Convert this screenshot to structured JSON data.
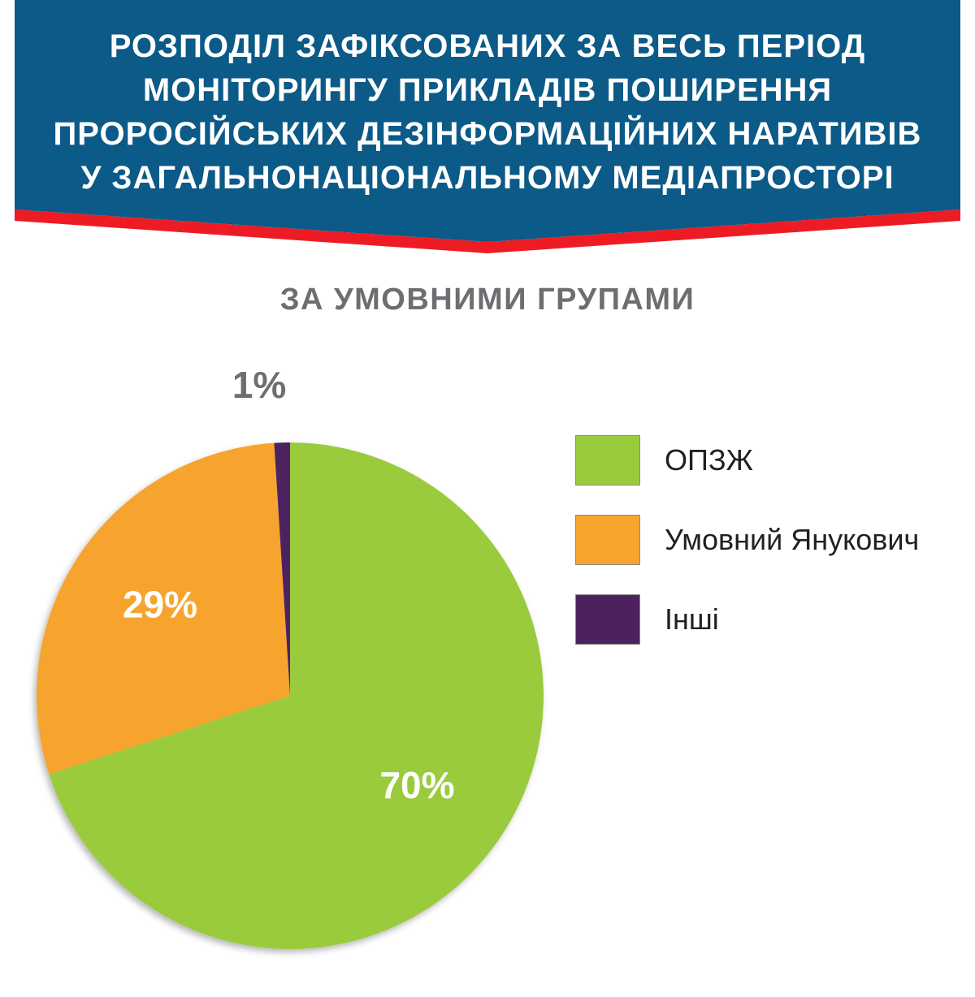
{
  "header": {
    "title_lines": [
      "РОЗПОДІЛ ЗАФІКСОВАНИХ ЗА ВЕСЬ ПЕРІОД",
      "МОНІТОРИНГУ ПРИКЛАДІВ ПОШИРЕННЯ",
      "ПРОРОСІЙСЬКИХ ДЕЗІНФОРМАЦІЙНИХ НАРАТИВІВ",
      "У ЗАГАЛЬНОНАЦІОНАЛЬНОМУ МЕДІАПРОСТОРІ"
    ],
    "background_color": "#0b5a87",
    "stripe_color": "#ed1c24"
  },
  "subtitle": "ЗА УМОВНИМИ ГРУПАМИ",
  "chart_data": {
    "type": "pie",
    "title": "РОЗПОДІЛ ЗАФІКСОВАНИХ ЗА ВЕСЬ ПЕРІОД МОНІТОРИНГУ ПРИКЛАДІВ ПОШИРЕННЯ ПРОРОСІЙСЬКИХ ДЕЗІНФОРМАЦІЙНИХ НАРАТИВІВ У ЗАГАЛЬНОНАЦІОНАЛЬНОМУ МЕДІАПРОСТОРІ",
    "subtitle": "ЗА УМОВНИМИ ГРУПАМИ",
    "legend_position": "right",
    "slices": [
      {
        "label": "ОПЗЖ",
        "value": 70,
        "display": "70%",
        "color": "#9acb3c",
        "label_color": "#ffffff",
        "label_placement": "inside"
      },
      {
        "label": "Умовний Янукович",
        "value": 29,
        "display": "29%",
        "color": "#f7a42d",
        "label_color": "#ffffff",
        "label_placement": "inside"
      },
      {
        "label": "Інші",
        "value": 1,
        "display": "1%",
        "color": "#4d2160",
        "label_color": "#6d6e71",
        "label_placement": "outside"
      }
    ]
  }
}
